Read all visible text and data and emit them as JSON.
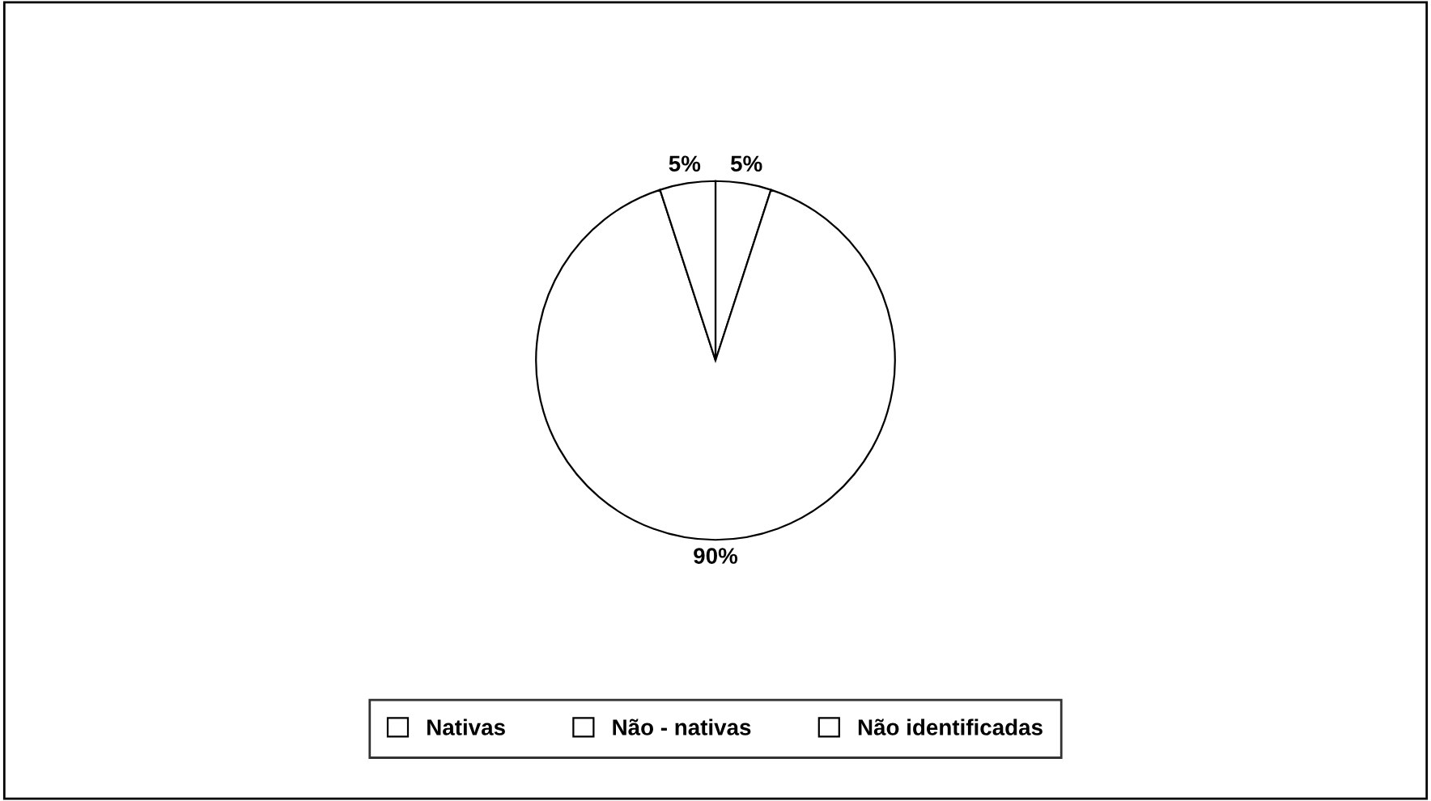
{
  "chart_data": {
    "type": "pie",
    "categories": [
      "Nativas",
      "Não - nativas",
      "Não identificadas"
    ],
    "values": [
      5,
      90,
      5
    ],
    "value_labels": [
      "5%",
      "90%",
      "5%"
    ],
    "colors": [
      "#ffffff",
      "#ffffff",
      "#ffffff"
    ],
    "legend": "bottom"
  }
}
